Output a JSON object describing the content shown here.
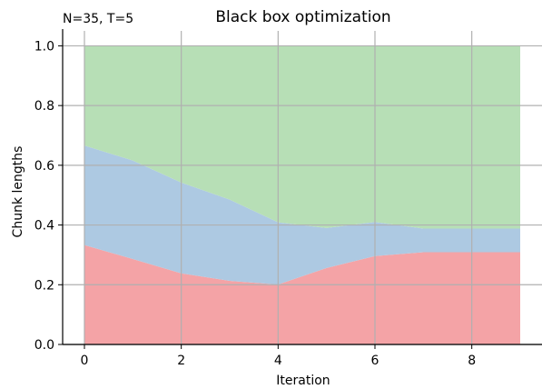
{
  "chart_data": {
    "type": "area",
    "stacked": true,
    "title": "Black box optimization",
    "annotation": "N=35, T=5",
    "xlabel": "Iteration",
    "ylabel": "Chunk lengths",
    "xlim": [
      -0.45,
      9.45
    ],
    "ylim": [
      0.0,
      1.05
    ],
    "xticks": [
      0,
      2,
      4,
      6,
      8
    ],
    "yticks": [
      0.0,
      0.2,
      0.4,
      0.6,
      0.8,
      1.0
    ],
    "xtick_labels": [
      "0",
      "2",
      "4",
      "6",
      "8"
    ],
    "ytick_labels": [
      "0.0",
      "0.2",
      "0.4",
      "0.6",
      "0.8",
      "1.0"
    ],
    "grid": true,
    "x": [
      0,
      1,
      2,
      3,
      4,
      5,
      6,
      7,
      8,
      9
    ],
    "series": [
      {
        "values": [
          0.333,
          0.286,
          0.238,
          0.213,
          0.201,
          0.256,
          0.296,
          0.309,
          0.309,
          0.309
        ],
        "color": "#f4a3a6"
      },
      {
        "values": [
          0.333,
          0.33,
          0.304,
          0.272,
          0.208,
          0.134,
          0.114,
          0.079,
          0.079,
          0.079
        ],
        "color": "#adc9e2"
      },
      {
        "values": [
          0.334,
          0.384,
          0.458,
          0.515,
          0.591,
          0.61,
          0.59,
          0.612,
          0.612,
          0.612
        ],
        "color": "#b7dfb6"
      }
    ]
  }
}
